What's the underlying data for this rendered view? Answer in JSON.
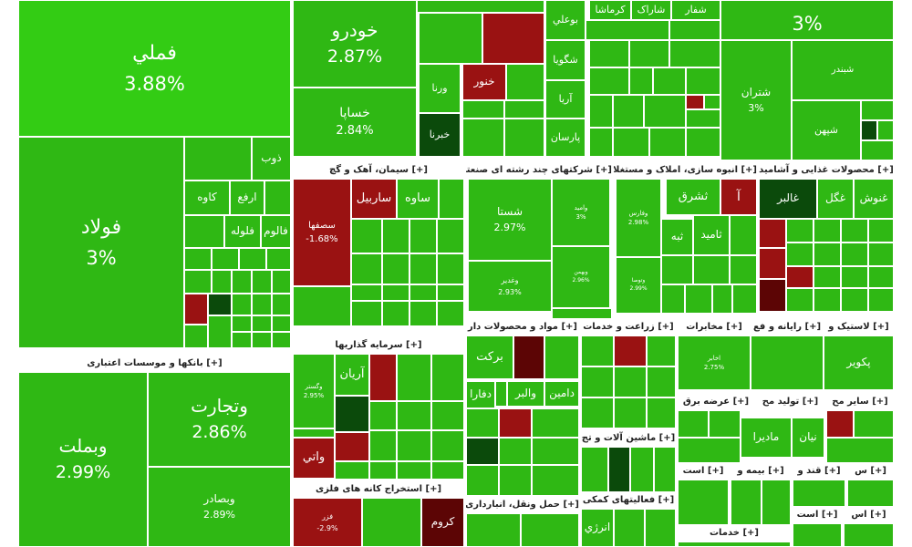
{
  "chart_data": {
    "type": "treemap",
    "colors": {
      "up_bright": "#33cc14",
      "up": "#2fb814",
      "up_deep": "#239d0c",
      "neutral_dark": "#0b4a0b",
      "down": "#9a1212",
      "down_dark": "#5c0505"
    },
    "sectors": [
      {
        "name": "[+] بانکها و موسسات اعتباری"
      },
      {
        "name": "[+] سیمان، آهک و گچ"
      },
      {
        "name": "[+] شرکتهای چند رشته ای صنعتی"
      },
      {
        "name": "[+] انبوه سازی، املاک و مستغلات"
      },
      {
        "name": "[+] محصولات غذایی و آشامید"
      },
      {
        "name": "[+] سرمایه گذاریها"
      },
      {
        "name": "[+] مواد و محصولات دار"
      },
      {
        "name": "[+] زراعت و خدمات"
      },
      {
        "name": "[+] مخابرات"
      },
      {
        "name": "[+] رایانه و فع"
      },
      {
        "name": "[+] لاستیک و"
      },
      {
        "name": "[+] عرضه برق"
      },
      {
        "name": "[+] تولید مح"
      },
      {
        "name": "[+] سایر مح"
      },
      {
        "name": "[+] ماشین آلات و تج"
      },
      {
        "name": "[+] استخراج کانه های فلزی"
      },
      {
        "name": "[+] حمل ونقل، انبارداری"
      },
      {
        "name": "[+] فعالیتهای کمکی"
      },
      {
        "name": "[+] است"
      },
      {
        "name": "[+] بیمه و"
      },
      {
        "name": "[+] قند و"
      },
      {
        "name": "[+] س"
      },
      {
        "name": "[+] است"
      },
      {
        "name": "[+] اس"
      },
      {
        "name": "[+] خدمات"
      }
    ],
    "tiles": [
      {
        "symbol": "فملي",
        "change": "3.88%",
        "color": "up_bright"
      },
      {
        "symbol": "فولاد",
        "change": "3%",
        "color": "up"
      },
      {
        "symbol": "خودرو",
        "change": "2.87%",
        "color": "up"
      },
      {
        "symbol": "خساپا",
        "change": "2.84%",
        "color": "up"
      },
      {
        "symbol": "",
        "change": "3%",
        "color": "up"
      },
      {
        "symbol": "شتران",
        "change": "3%",
        "color": "up"
      },
      {
        "symbol": "شبندر",
        "change": "",
        "color": "up"
      },
      {
        "symbol": "شپهن",
        "change": "",
        "color": "up"
      },
      {
        "symbol": "وتجارت",
        "change": "2.86%",
        "color": "up"
      },
      {
        "symbol": "وبملت",
        "change": "2.99%",
        "color": "up"
      },
      {
        "symbol": "وبصادر",
        "change": "2.89%",
        "color": "up"
      },
      {
        "symbol": "سصفها",
        "change": "-1.68%",
        "color": "down"
      },
      {
        "symbol": "ساربيل",
        "change": "",
        "color": "down"
      },
      {
        "symbol": "ساوه",
        "change": "",
        "color": "up"
      },
      {
        "symbol": "شستا",
        "change": "2.97%",
        "color": "up"
      },
      {
        "symbol": "وامید",
        "change": "3%",
        "color": "up"
      },
      {
        "symbol": "وبهمن",
        "change": "2.96%",
        "color": "up"
      },
      {
        "symbol": "وغدير",
        "change": "2.93%",
        "color": "up"
      },
      {
        "symbol": "وآتی",
        "change": "",
        "color": "up"
      },
      {
        "symbol": "ثشرق",
        "change": "",
        "color": "up"
      },
      {
        "symbol": "آ",
        "change": "",
        "color": "down"
      },
      {
        "symbol": "ثامید",
        "change": "",
        "color": "up"
      },
      {
        "symbol": "ثبه",
        "change": "",
        "color": "up"
      },
      {
        "symbol": "وفارس",
        "change": "2.98%",
        "color": "up"
      },
      {
        "symbol": "وتوصا",
        "change": "2.99%",
        "color": "up"
      },
      {
        "symbol": "غنوش",
        "change": "",
        "color": "up"
      },
      {
        "symbol": "غگل",
        "change": "",
        "color": "up"
      },
      {
        "symbol": "غالبر",
        "change": "",
        "color": "neutral_dark"
      },
      {
        "symbol": "وگستر",
        "change": "2.95%",
        "color": "up"
      },
      {
        "symbol": "آریان",
        "change": "",
        "color": "up"
      },
      {
        "symbol": "واتي",
        "change": "",
        "color": "down"
      },
      {
        "symbol": "برکت",
        "change": "",
        "color": "up"
      },
      {
        "symbol": "دفارا",
        "change": "",
        "color": "up"
      },
      {
        "symbol": "دامین",
        "change": "",
        "color": "up"
      },
      {
        "symbol": "والبر",
        "change": "",
        "color": "up"
      },
      {
        "symbol": "اخابر",
        "change": "2.75%",
        "color": "up"
      },
      {
        "symbol": "پکویر",
        "change": "",
        "color": "up"
      },
      {
        "symbol": "نیان",
        "change": "",
        "color": "up"
      },
      {
        "symbol": "مادیرا",
        "change": "",
        "color": "up"
      },
      {
        "symbol": "فزر",
        "change": "-2.9%",
        "color": "down"
      },
      {
        "symbol": "کروم",
        "change": "",
        "color": "down_dark"
      },
      {
        "symbol": "انرژي",
        "change": "",
        "color": "up"
      },
      {
        "symbol": "خبرنا",
        "change": "",
        "color": "neutral_dark"
      },
      {
        "symbol": "خنور",
        "change": "",
        "color": "down"
      },
      {
        "symbol": "ورنا",
        "change": "",
        "color": "up"
      },
      {
        "symbol": "بوعلي",
        "change": "",
        "color": "up"
      },
      {
        "symbol": "شگويا",
        "change": "",
        "color": "up"
      },
      {
        "symbol": "آريا",
        "change": "",
        "color": "up"
      },
      {
        "symbol": "پارسان",
        "change": "",
        "color": "up"
      },
      {
        "symbol": "کرماشا",
        "change": "",
        "color": "up"
      },
      {
        "symbol": "شاراک",
        "change": "",
        "color": "up"
      },
      {
        "symbol": "شفار",
        "change": "",
        "color": "up"
      },
      {
        "symbol": "ذوب",
        "change": "",
        "color": "up"
      },
      {
        "symbol": "کاوه",
        "change": "",
        "color": "up"
      },
      {
        "symbol": "ارفع",
        "change": "",
        "color": "up"
      },
      {
        "symbol": "فالوم",
        "change": "",
        "color": "up"
      },
      {
        "symbol": "فلوله",
        "change": "",
        "color": "up"
      }
    ]
  }
}
